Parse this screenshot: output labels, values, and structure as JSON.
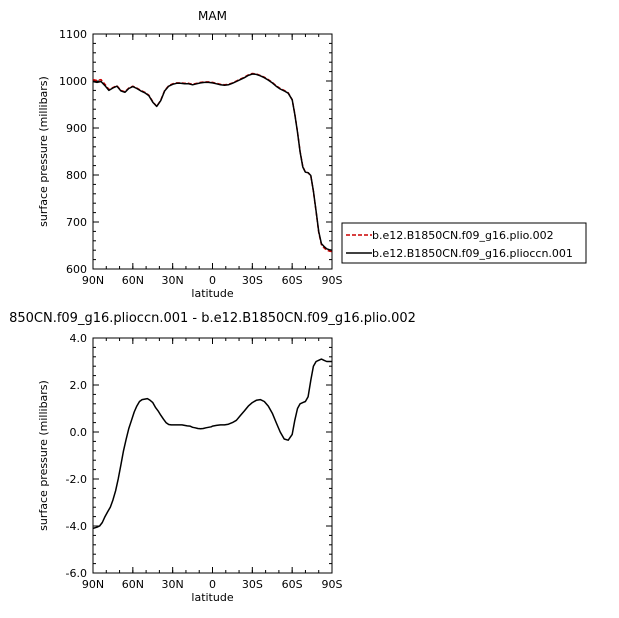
{
  "chart_data": [
    {
      "type": "line",
      "title": "MAM",
      "xlabel": "latitude",
      "ylabel": "surface pressure (millibars)",
      "xlim": [
        90,
        -90
      ],
      "ylim": [
        600,
        1100
      ],
      "x_ticks": [
        90,
        60,
        30,
        0,
        -30,
        -60,
        -90
      ],
      "x_tick_labels": [
        "90N",
        "60N",
        "30N",
        "0",
        "30S",
        "60S",
        "90S"
      ],
      "y_ticks": [
        600,
        700,
        800,
        900,
        1000,
        1100
      ],
      "y_tick_labels": [
        "600",
        "700",
        "800",
        "900",
        "1000",
        "1100"
      ],
      "grid": false,
      "legend": "right",
      "series": [
        {
          "name": "b.e12.B1850CN.f09_g16.plio.002",
          "color": "#cc0000",
          "dash": "dashed",
          "x": [
            90,
            87,
            84,
            81,
            78,
            75,
            72,
            69,
            66,
            63,
            60,
            57,
            54,
            51,
            48,
            45,
            42,
            39,
            36,
            33,
            30,
            27,
            24,
            21,
            18,
            15,
            12,
            9,
            6,
            3,
            0,
            -3,
            -6,
            -9,
            -12,
            -15,
            -18,
            -21,
            -24,
            -27,
            -30,
            -33,
            -36,
            -39,
            -42,
            -45,
            -48,
            -51,
            -54,
            -57,
            -60,
            -62,
            -64,
            -66,
            -68,
            -70,
            -72,
            -74,
            -76,
            -78,
            -80,
            -82,
            -84,
            -86,
            -88,
            -90
          ],
          "y": [
            1003,
            1001,
            1003,
            993,
            982,
            986,
            990,
            980,
            977,
            985,
            989,
            985,
            980,
            976,
            970,
            956,
            946,
            959,
            980,
            990,
            994,
            996,
            996,
            995,
            995,
            993,
            995,
            997,
            998,
            998,
            997,
            995,
            993,
            992,
            993,
            996,
            1000,
            1004,
            1008,
            1013,
            1016,
            1015,
            1012,
            1008,
            1003,
            997,
            990,
            984,
            980,
            975,
            960,
            930,
            892,
            850,
            818,
            806,
            805,
            798,
            765,
            722,
            678,
            652,
            645,
            640,
            638,
            637
          ]
        },
        {
          "name": "b.e12.B1850CN.f09_g16.plioccn.001",
          "color": "#000000",
          "dash": "solid",
          "x": [
            90,
            87,
            84,
            81,
            78,
            75,
            72,
            69,
            66,
            63,
            60,
            57,
            54,
            51,
            48,
            45,
            42,
            39,
            36,
            33,
            30,
            27,
            24,
            21,
            18,
            15,
            12,
            9,
            6,
            3,
            0,
            -3,
            -6,
            -9,
            -12,
            -15,
            -18,
            -21,
            -24,
            -27,
            -30,
            -33,
            -36,
            -39,
            -42,
            -45,
            -48,
            -51,
            -54,
            -57,
            -60,
            -62,
            -64,
            -66,
            -68,
            -70,
            -72,
            -74,
            -76,
            -78,
            -80,
            -82,
            -84,
            -86,
            -88,
            -90
          ],
          "y": [
            999,
            997,
            999,
            990,
            980,
            985,
            989,
            979,
            976,
            984,
            988,
            984,
            979,
            975,
            969,
            955,
            946,
            958,
            979,
            989,
            993,
            995,
            995,
            994,
            994,
            992,
            994,
            996,
            997,
            997,
            996,
            994,
            992,
            991,
            992,
            995,
            999,
            1003,
            1007,
            1012,
            1015,
            1014,
            1011,
            1007,
            1002,
            996,
            989,
            983,
            979,
            974,
            960,
            929,
            891,
            849,
            817,
            806,
            805,
            799,
            766,
            723,
            680,
            654,
            648,
            643,
            641,
            640
          ]
        }
      ]
    },
    {
      "type": "line",
      "title": "850CN.f09_g16.plioccn.001 - b.e12.B1850CN.f09_g16.plio.002",
      "xlabel": "latitude",
      "ylabel": "surface pressure (millibars)",
      "xlim": [
        90,
        -90
      ],
      "ylim": [
        -6,
        4
      ],
      "x_ticks": [
        90,
        60,
        30,
        0,
        -30,
        -60,
        -90
      ],
      "x_tick_labels": [
        "90N",
        "60N",
        "30N",
        "0",
        "30S",
        "60S",
        "90S"
      ],
      "y_ticks": [
        -6,
        -4,
        -2,
        0,
        2,
        4
      ],
      "y_tick_labels": [
        "-6.0",
        "-4.0",
        "-2.0",
        "0.0",
        "2.0",
        "4.0"
      ],
      "grid": false,
      "legend": "none",
      "series": [
        {
          "color": "#000000",
          "dash": "solid",
          "x": [
            90,
            87,
            85,
            83,
            81,
            79,
            77,
            75,
            73,
            71,
            69,
            67,
            65,
            63,
            61,
            59,
            57,
            55,
            53,
            51,
            49,
            47,
            45,
            43,
            41,
            39,
            37,
            35,
            33,
            31,
            29,
            27,
            25,
            23,
            21,
            19,
            17,
            15,
            13,
            11,
            9,
            7,
            5,
            3,
            1,
            0,
            -3,
            -6,
            -9,
            -12,
            -15,
            -18,
            -21,
            -24,
            -27,
            -30,
            -33,
            -36,
            -39,
            -42,
            -45,
            -48,
            -51,
            -54,
            -57,
            -60,
            -62,
            -64,
            -66,
            -68,
            -70,
            -72,
            -74,
            -76,
            -78,
            -80,
            -82,
            -84,
            -86,
            -88,
            -90
          ],
          "y": [
            -4.1,
            -4.05,
            -4.0,
            -3.85,
            -3.6,
            -3.4,
            -3.2,
            -2.9,
            -2.5,
            -2.0,
            -1.4,
            -0.8,
            -0.3,
            0.15,
            0.5,
            0.85,
            1.1,
            1.3,
            1.38,
            1.4,
            1.42,
            1.35,
            1.25,
            1.05,
            0.9,
            0.72,
            0.55,
            0.4,
            0.32,
            0.3,
            0.3,
            0.3,
            0.3,
            0.3,
            0.28,
            0.26,
            0.25,
            0.2,
            0.18,
            0.15,
            0.14,
            0.15,
            0.18,
            0.2,
            0.22,
            0.25,
            0.28,
            0.3,
            0.3,
            0.33,
            0.4,
            0.5,
            0.7,
            0.9,
            1.1,
            1.25,
            1.35,
            1.38,
            1.3,
            1.1,
            0.8,
            0.4,
            0.0,
            -0.3,
            -0.35,
            -0.1,
            0.5,
            1.0,
            1.2,
            1.25,
            1.3,
            1.5,
            2.2,
            2.8,
            3.0,
            3.05,
            3.1,
            3.05,
            3.0,
            3.0,
            3.0
          ]
        }
      ]
    }
  ]
}
